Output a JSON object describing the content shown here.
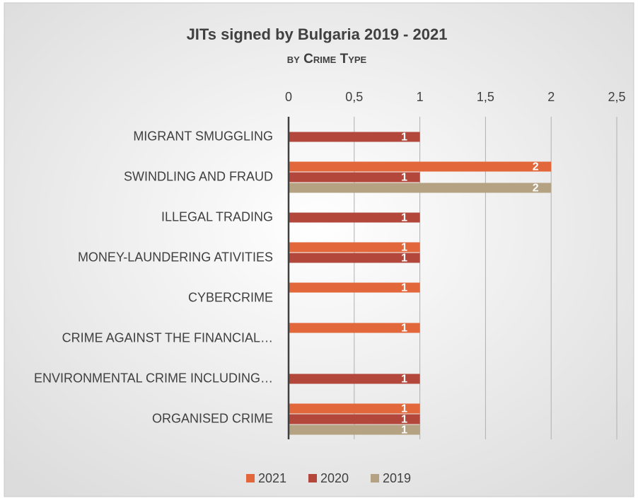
{
  "chart_data": {
    "type": "bar",
    "orientation": "horizontal",
    "title": "JITs signed by Bulgaria 2019 - 2021",
    "subtitle": "by Crime Type",
    "categories": [
      "MIGRANT SMUGGLING",
      "SWINDLING AND FRAUD",
      "ILLEGAL TRADING",
      "MONEY-LAUNDERING ATIVITIES",
      "CYBERCRIME",
      "CRIME AGAINST THE FINANCIAL…",
      "ENVIRONMENTAL CRIME INCLUDING…",
      "ORGANISED CRIME"
    ],
    "series": [
      {
        "name": "2021",
        "color": "#e2673a",
        "values": [
          null,
          2,
          null,
          1,
          1,
          1,
          null,
          1
        ]
      },
      {
        "name": "2020",
        "color": "#b3473b",
        "values": [
          1,
          1,
          1,
          1,
          null,
          null,
          1,
          1
        ]
      },
      {
        "name": "2019",
        "color": "#b4a283",
        "values": [
          null,
          2,
          null,
          null,
          null,
          null,
          null,
          1
        ]
      }
    ],
    "xlim": [
      0,
      2.5
    ],
    "xticks": [
      0,
      {
        "value": 0.5,
        "label": "0,5"
      },
      1,
      {
        "value": 1.5,
        "label": "1,5"
      },
      2,
      {
        "value": 2.5,
        "label": "2,5"
      }
    ],
    "grid": true,
    "legend": "bottom"
  }
}
